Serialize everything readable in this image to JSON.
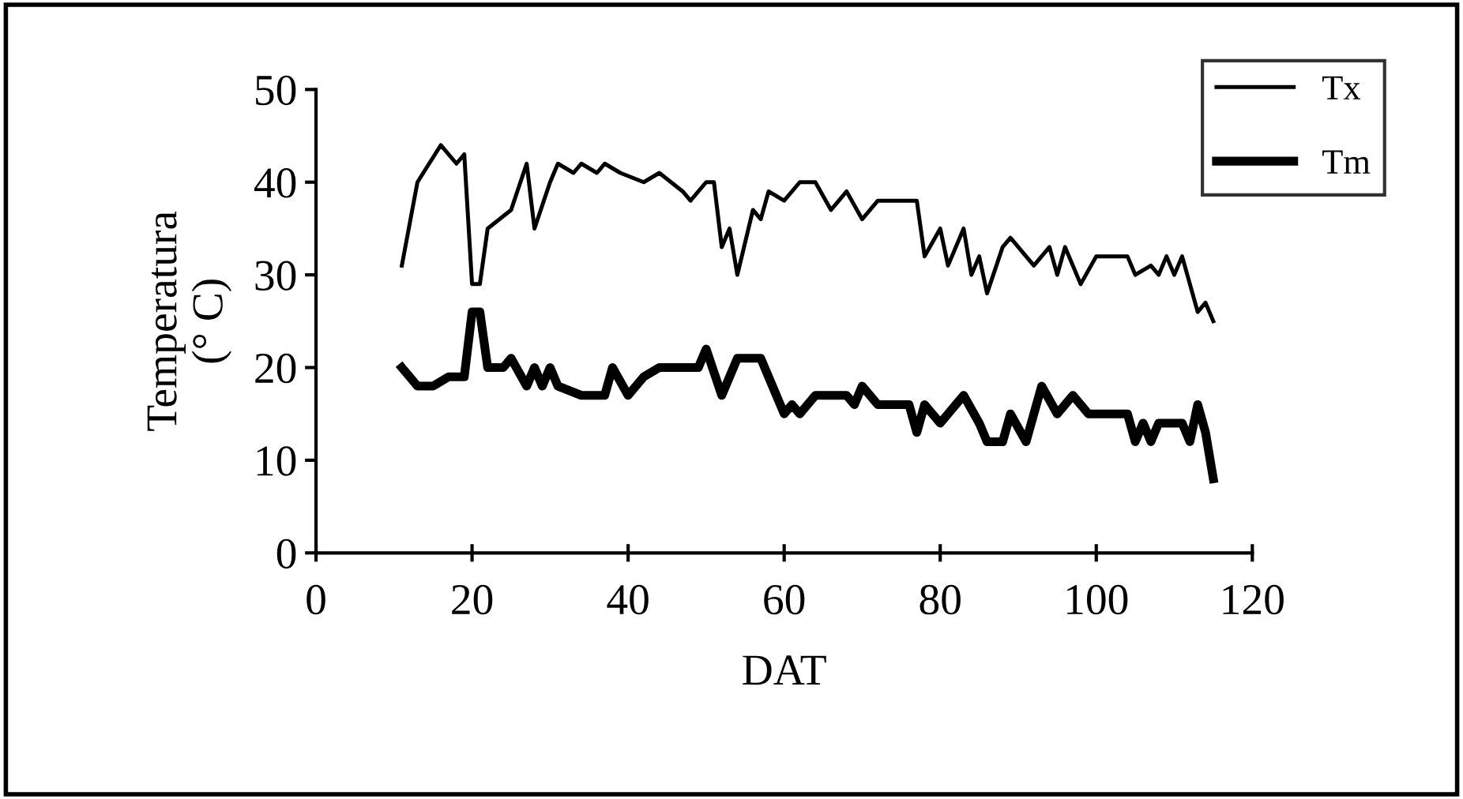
{
  "chart_data": {
    "type": "line",
    "xlabel": "DAT",
    "ylabel": "Temperatura\n(° C)",
    "xlim": [
      0,
      120
    ],
    "xticks": [
      0,
      20,
      40,
      60,
      80,
      100,
      120
    ],
    "ylim": [
      0,
      50
    ],
    "yticks": [
      0,
      10,
      20,
      30,
      40,
      50
    ],
    "grid": false,
    "legend": "top right",
    "marker": "none",
    "line_style": "solid",
    "series": [
      {
        "name": "Tx",
        "color": "#000000",
        "x": [
          11,
          13,
          16,
          18,
          19,
          20,
          21,
          22,
          25,
          27,
          28,
          30,
          31,
          33,
          34,
          36,
          37,
          39,
          42,
          44,
          47,
          48,
          50,
          51,
          52,
          53,
          54,
          56,
          57,
          58,
          60,
          62,
          64,
          66,
          68,
          70,
          72,
          77,
          78,
          80,
          81,
          83,
          84,
          85,
          86,
          88,
          89,
          92,
          94,
          95,
          96,
          98,
          100,
          104,
          105,
          107,
          108,
          109,
          110,
          111,
          112,
          113,
          114,
          115
        ],
        "values": [
          31,
          40,
          44,
          42,
          43,
          29,
          29,
          35,
          37,
          42,
          35,
          40,
          42,
          41,
          42,
          41,
          42,
          41,
          40,
          41,
          39,
          38,
          40,
          40,
          33,
          35,
          30,
          37,
          36,
          39,
          38,
          40,
          40,
          37,
          39,
          36,
          38,
          38,
          32,
          35,
          31,
          35,
          30,
          32,
          28,
          33,
          34,
          31,
          33,
          30,
          33,
          29,
          32,
          32,
          30,
          31,
          30,
          32,
          30,
          32,
          29,
          26,
          27,
          25
        ]
      },
      {
        "name": "Tm",
        "color": "#000000",
        "x": [
          11,
          13,
          15,
          17,
          19,
          20,
          21,
          22,
          24,
          25,
          27,
          28,
          29,
          30,
          31,
          34,
          37,
          38,
          40,
          42,
          44,
          49,
          50,
          52,
          54,
          57,
          59,
          60,
          61,
          62,
          64,
          68,
          69,
          70,
          72,
          76,
          77,
          78,
          80,
          81,
          83,
          85,
          86,
          88,
          89,
          91,
          93,
          95,
          97,
          99,
          102,
          104,
          105,
          106,
          107,
          108,
          111,
          112,
          113,
          114,
          115
        ],
        "values": [
          20,
          18,
          18,
          19,
          19,
          26,
          26,
          20,
          20,
          21,
          18,
          20,
          18,
          20,
          18,
          17,
          17,
          20,
          17,
          19,
          20,
          20,
          22,
          17,
          21,
          21,
          17,
          15,
          16,
          15,
          17,
          17,
          16,
          18,
          16,
          16,
          13,
          16,
          14,
          15,
          17,
          14,
          12,
          12,
          15,
          12,
          18,
          15,
          17,
          15,
          15,
          15,
          12,
          14,
          12,
          14,
          14,
          12,
          16,
          13,
          8
        ]
      }
    ]
  }
}
